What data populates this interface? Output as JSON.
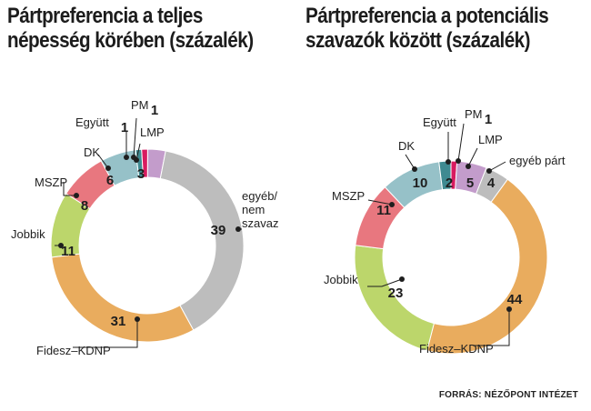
{
  "colors": {
    "Fidesz-KDNP": "#e9ac5e",
    "Jobbik": "#bcd66b",
    "MSZP": "#e8777f",
    "DK": "#96c1c8",
    "Együtt": "#3f8a91",
    "PM": "#d81b60",
    "LMP": "#c39ccb",
    "egyéb": "#bdbdbd",
    "value_text": "#1e1e1e",
    "leader": "#1e1e1e"
  },
  "source": "FORRÁS: NÉZŐPONT INTÉZET",
  "chart_data": [
    {
      "type": "donut",
      "title_lines": [
        "Pártpreferencia a teljes",
        "népesség körében (százalék)"
      ],
      "slices": [
        {
          "key": "LMP",
          "name": "LMP",
          "value": 3
        },
        {
          "key": "egyéb",
          "name": "egyéb/ nem szavaz",
          "name_lines": [
            "egyéb/",
            "nem",
            "szavaz"
          ],
          "value": 39
        },
        {
          "key": "Fidesz-KDNP",
          "name": "Fidesz–KDNP",
          "value": 31
        },
        {
          "key": "Jobbik",
          "name": "Jobbik",
          "value": 11
        },
        {
          "key": "MSZP",
          "name": "MSZP",
          "value": 8
        },
        {
          "key": "DK",
          "name": "DK",
          "value": 6
        },
        {
          "key": "Együtt",
          "name": "Együtt",
          "value": 1
        },
        {
          "key": "PM",
          "name": "PM",
          "value": 1
        }
      ]
    },
    {
      "type": "donut",
      "title_lines": [
        "Pártpreferencia a potenciális",
        "szavazók között (százalék)"
      ],
      "slices": [
        {
          "key": "PM",
          "name": "PM",
          "value": 1
        },
        {
          "key": "LMP",
          "name": "LMP",
          "value": 5
        },
        {
          "key": "egyéb",
          "name": "egyéb párt",
          "name_lines": [
            "egyéb párt"
          ],
          "value": 4
        },
        {
          "key": "Fidesz-KDNP",
          "name": "Fidesz–KDNP",
          "value": 44
        },
        {
          "key": "Jobbik",
          "name": "Jobbik",
          "value": 23
        },
        {
          "key": "MSZP",
          "name": "MSZP",
          "value": 11
        },
        {
          "key": "DK",
          "name": "DK",
          "value": 10
        },
        {
          "key": "Együtt",
          "name": "Együtt",
          "value": 2
        }
      ]
    }
  ]
}
